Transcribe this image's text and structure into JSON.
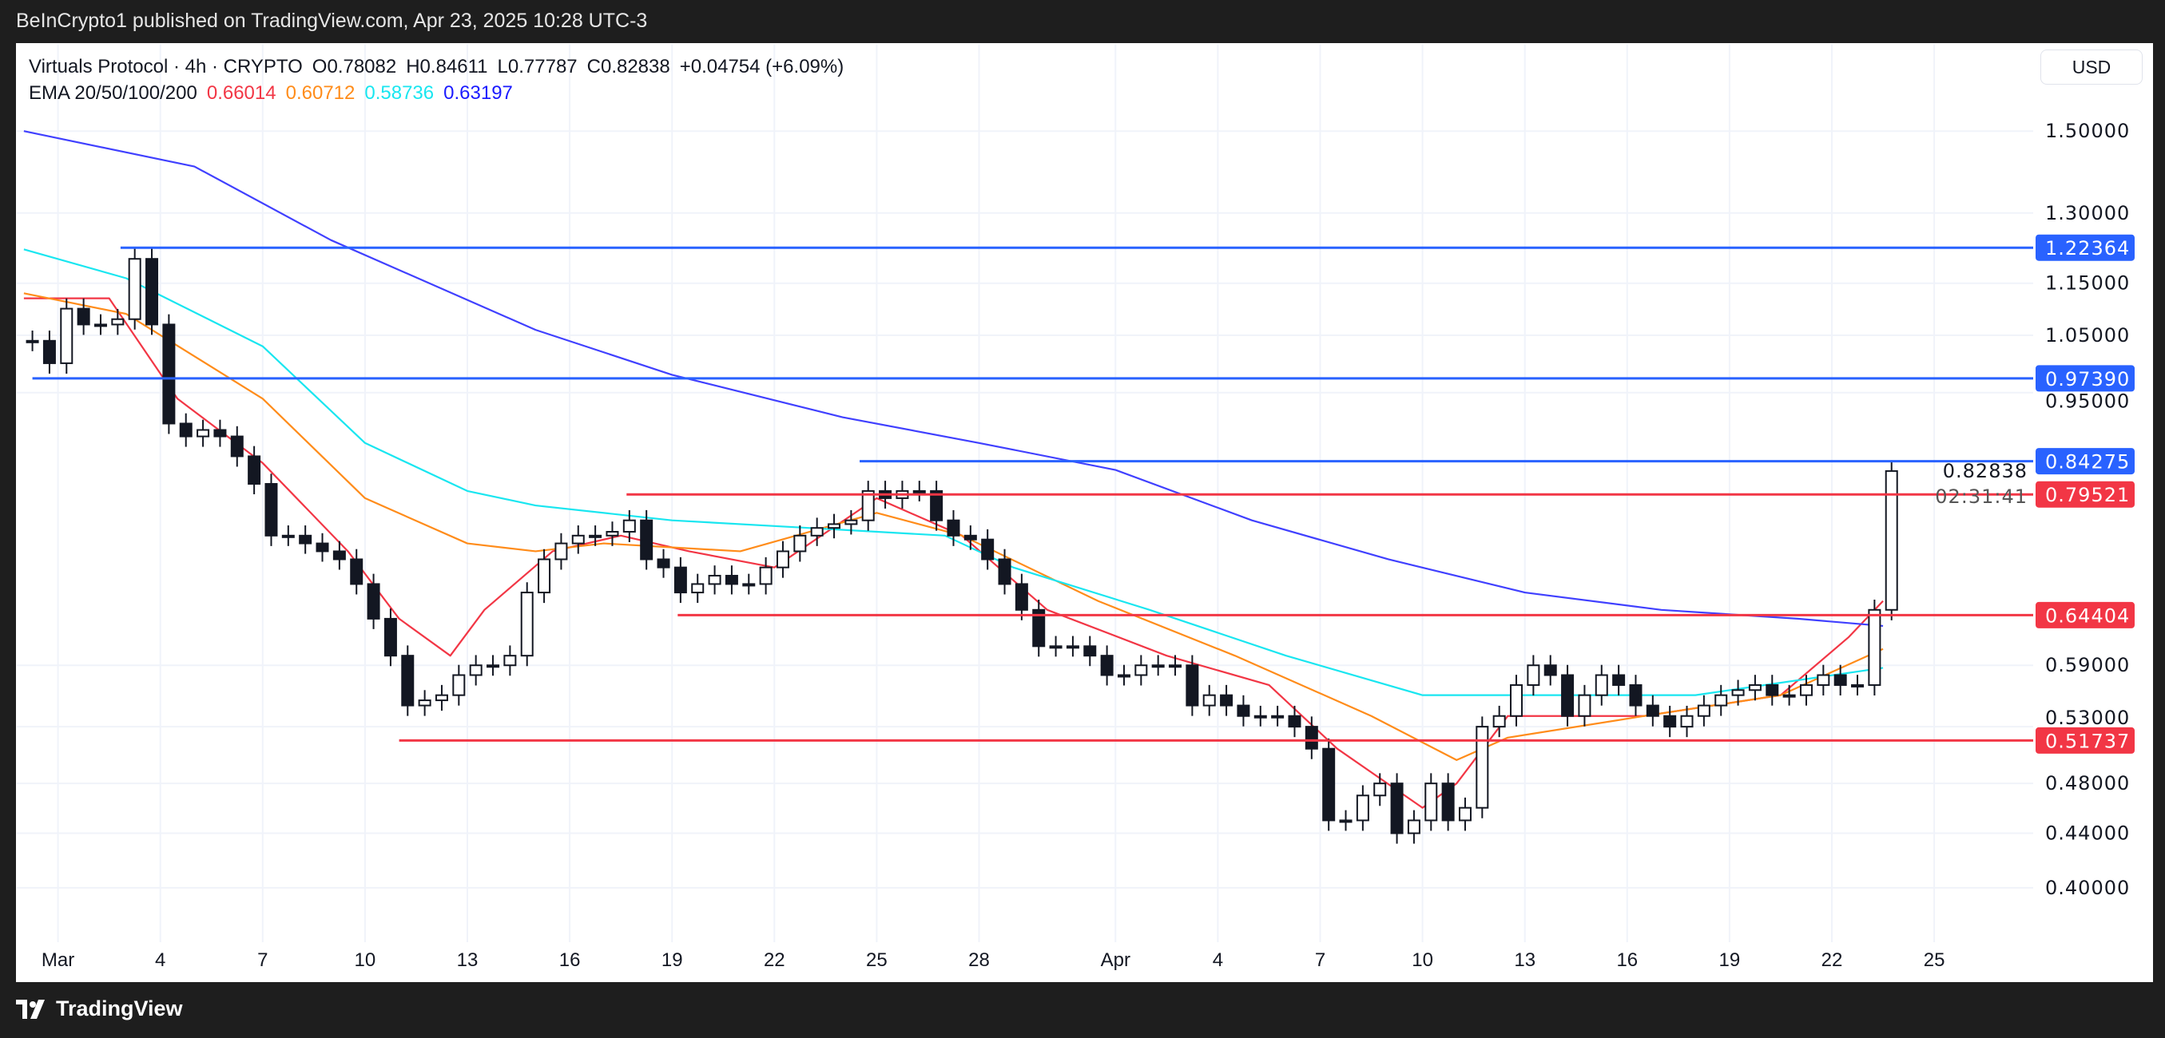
{
  "publish_line": "BeInCrypto1 published on TradingView.com, Apr 23, 2025 10:28 UTC-3",
  "legend": {
    "symbol": "Virtuals Protocol · 4h · CRYPTO",
    "open": "O0.78082",
    "high": "H0.84611",
    "low": "L0.77787",
    "close": "C0.82838",
    "change": "+0.04754 (+6.09%)",
    "ema_label": "EMA 20/50/100/200",
    "ema_values": [
      "0.66014",
      "0.60712",
      "0.58736",
      "0.63197"
    ]
  },
  "currency_button": "USD",
  "footer_brand": "TradingView",
  "colors": {
    "ema20": "#f23645",
    "ema50": "#ff8c1a",
    "ema100": "#19e6f0",
    "ema200": "#4040ff",
    "resistance": "#2962ff",
    "support": "#f23645",
    "grid": "#f0f3fa"
  },
  "chart_data": {
    "type": "candlestick",
    "y_scale": "log",
    "ylim": [
      0.38,
      1.56
    ],
    "grid": true,
    "y_ticks": [
      "1.50000",
      "1.30000",
      "1.15000",
      "1.05000",
      "0.95000",
      "0.59000",
      "0.53000",
      "0.48000",
      "0.44000",
      "0.40000"
    ],
    "x_ticks": [
      {
        "label": "Mar",
        "date": "Mar 1"
      },
      {
        "label": "4",
        "date": "Mar 4"
      },
      {
        "label": "7",
        "date": "Mar 7"
      },
      {
        "label": "10",
        "date": "Mar 10"
      },
      {
        "label": "13",
        "date": "Mar 13"
      },
      {
        "label": "16",
        "date": "Mar 16"
      },
      {
        "label": "19",
        "date": "Mar 19"
      },
      {
        "label": "22",
        "date": "Mar 22"
      },
      {
        "label": "25",
        "date": "Mar 25"
      },
      {
        "label": "28",
        "date": "Mar 28"
      },
      {
        "label": "Apr",
        "date": "Apr 1"
      },
      {
        "label": "4",
        "date": "Apr 4"
      },
      {
        "label": "7",
        "date": "Apr 7"
      },
      {
        "label": "10",
        "date": "Apr 10"
      },
      {
        "label": "13",
        "date": "Apr 13"
      },
      {
        "label": "16",
        "date": "Apr 16"
      },
      {
        "label": "19",
        "date": "Apr 19"
      },
      {
        "label": "22",
        "date": "Apr 22"
      },
      {
        "label": "25",
        "date": "Apr 25"
      }
    ],
    "price_closes_12h": [
      {
        "date": "Feb 28",
        "c": [
          1.04,
          1.0
        ]
      },
      {
        "date": "Mar 1",
        "c": [
          1.1,
          1.07
        ]
      },
      {
        "date": "Mar 2",
        "c": [
          1.07,
          1.08
        ]
      },
      {
        "date": "Mar 3",
        "c": [
          1.2,
          1.07
        ]
      },
      {
        "date": "Mar 4",
        "c": [
          0.9,
          0.88
        ]
      },
      {
        "date": "Mar 5",
        "c": [
          0.89,
          0.88
        ]
      },
      {
        "date": "Mar 6",
        "c": [
          0.85,
          0.81
        ]
      },
      {
        "date": "Mar 7",
        "c": [
          0.74,
          0.74
        ]
      },
      {
        "date": "Mar 8",
        "c": [
          0.73,
          0.72
        ]
      },
      {
        "date": "Mar 9",
        "c": [
          0.71,
          0.68
        ]
      },
      {
        "date": "Mar 10",
        "c": [
          0.64,
          0.6
        ]
      },
      {
        "date": "Mar 11",
        "c": [
          0.55,
          0.555
        ]
      },
      {
        "date": "Mar 12",
        "c": [
          0.56,
          0.58
        ]
      },
      {
        "date": "Mar 13",
        "c": [
          0.59,
          0.59
        ]
      },
      {
        "date": "Mar 14",
        "c": [
          0.6,
          0.67
        ]
      },
      {
        "date": "Mar 15",
        "c": [
          0.71,
          0.73
        ]
      },
      {
        "date": "Mar 16",
        "c": [
          0.74,
          0.74
        ]
      },
      {
        "date": "Mar 17",
        "c": [
          0.745,
          0.76
        ]
      },
      {
        "date": "Mar 18",
        "c": [
          0.71,
          0.7
        ]
      },
      {
        "date": "Mar 19",
        "c": [
          0.67,
          0.68
        ]
      },
      {
        "date": "Mar 20",
        "c": [
          0.69,
          0.68
        ]
      },
      {
        "date": "Mar 21",
        "c": [
          0.68,
          0.7
        ]
      },
      {
        "date": "Mar 22",
        "c": [
          0.72,
          0.74
        ]
      },
      {
        "date": "Mar 23",
        "c": [
          0.75,
          0.755
        ]
      },
      {
        "date": "Mar 24",
        "c": [
          0.76,
          0.8
        ]
      },
      {
        "date": "Mar 25",
        "c": [
          0.79,
          0.8
        ]
      },
      {
        "date": "Mar 26",
        "c": [
          0.8,
          0.76
        ]
      },
      {
        "date": "Mar 27",
        "c": [
          0.74,
          0.735
        ]
      },
      {
        "date": "Mar 28",
        "c": [
          0.71,
          0.68
        ]
      },
      {
        "date": "Mar 29",
        "c": [
          0.65,
          0.61
        ]
      },
      {
        "date": "Mar 30",
        "c": [
          0.61,
          0.61
        ]
      },
      {
        "date": "Mar 31",
        "c": [
          0.6,
          0.58
        ]
      },
      {
        "date": "Apr 1",
        "c": [
          0.58,
          0.59
        ]
      },
      {
        "date": "Apr 2",
        "c": [
          0.59,
          0.59
        ]
      },
      {
        "date": "Apr 3",
        "c": [
          0.55,
          0.56
        ]
      },
      {
        "date": "Apr 4",
        "c": [
          0.55,
          0.54
        ]
      },
      {
        "date": "Apr 5",
        "c": [
          0.54,
          0.54
        ]
      },
      {
        "date": "Apr 6",
        "c": [
          0.53,
          0.51
        ]
      },
      {
        "date": "Apr 7",
        "c": [
          0.45,
          0.45
        ]
      },
      {
        "date": "Apr 8",
        "c": [
          0.47,
          0.48
        ]
      },
      {
        "date": "Apr 9",
        "c": [
          0.44,
          0.45
        ]
      },
      {
        "date": "Apr 10",
        "c": [
          0.48,
          0.45
        ]
      },
      {
        "date": "Apr 11",
        "c": [
          0.46,
          0.53
        ]
      },
      {
        "date": "Apr 12",
        "c": [
          0.54,
          0.57
        ]
      },
      {
        "date": "Apr 13",
        "c": [
          0.59,
          0.58
        ]
      },
      {
        "date": "Apr 14",
        "c": [
          0.54,
          0.56
        ]
      },
      {
        "date": "Apr 15",
        "c": [
          0.58,
          0.57
        ]
      },
      {
        "date": "Apr 16",
        "c": [
          0.55,
          0.54
        ]
      },
      {
        "date": "Apr 17",
        "c": [
          0.53,
          0.54
        ]
      },
      {
        "date": "Apr 18",
        "c": [
          0.55,
          0.56
        ]
      },
      {
        "date": "Apr 19",
        "c": [
          0.565,
          0.57
        ]
      },
      {
        "date": "Apr 20",
        "c": [
          0.56,
          0.56
        ]
      },
      {
        "date": "Apr 21",
        "c": [
          0.57,
          0.58
        ]
      },
      {
        "date": "Apr 22",
        "c": [
          0.57,
          0.57
        ]
      },
      {
        "date": "Apr 23",
        "c": [
          0.65,
          0.82838
        ]
      }
    ],
    "ema": [
      {
        "name": "EMA 20",
        "color_key": "ema20",
        "points": [
          [
            "Feb 28",
            1.12
          ],
          [
            "Mar 2 12:00",
            1.12
          ],
          [
            "Mar 4 12:00",
            0.94
          ],
          [
            "Mar 7",
            0.84
          ],
          [
            "Mar 9 12:00",
            0.72
          ],
          [
            "Mar 11",
            0.64
          ],
          [
            "Mar 12 12:00",
            0.6
          ],
          [
            "Mar 13 12:00",
            0.65
          ],
          [
            "Mar 15 12:00",
            0.72
          ],
          [
            "Mar 17 12:00",
            0.74
          ],
          [
            "Mar 19 12:00",
            0.72
          ],
          [
            "Mar 22",
            0.7
          ],
          [
            "Mar 25",
            0.79
          ],
          [
            "Mar 27 12:00",
            0.74
          ],
          [
            "Mar 30",
            0.65
          ],
          [
            "Apr 2 12:00",
            0.6
          ],
          [
            "Apr 5 12:00",
            0.57
          ],
          [
            "Apr 7 12:00",
            0.51
          ],
          [
            "Apr 10",
            0.46
          ],
          [
            "Apr 11",
            0.48
          ],
          [
            "Apr 12 12:00",
            0.54
          ],
          [
            "Apr 16 12:00",
            0.54
          ],
          [
            "Apr 20 12:00",
            0.56
          ],
          [
            "Apr 22 12:00",
            0.62
          ],
          [
            "Apr 23 12:00",
            0.66014
          ]
        ]
      },
      {
        "name": "EMA 50",
        "color_key": "ema50",
        "points": [
          [
            "Feb 28",
            1.13
          ],
          [
            "Mar 3",
            1.09
          ],
          [
            "Mar 7",
            0.94
          ],
          [
            "Mar 10",
            0.79
          ],
          [
            "Mar 13",
            0.73
          ],
          [
            "Mar 15",
            0.72
          ],
          [
            "Mar 17",
            0.73
          ],
          [
            "Mar 21",
            0.72
          ],
          [
            "Mar 25",
            0.77
          ],
          [
            "Mar 27 12:00",
            0.74
          ],
          [
            "Mar 31 12:00",
            0.66
          ],
          [
            "Apr 4 12:00",
            0.6
          ],
          [
            "Apr 8 12:00",
            0.54
          ],
          [
            "Apr 11",
            0.5
          ],
          [
            "Apr 12 12:00",
            0.52
          ],
          [
            "Apr 16 12:00",
            0.54
          ],
          [
            "Apr 20 12:00",
            0.56
          ],
          [
            "Apr 23 12:00",
            0.60712
          ]
        ]
      },
      {
        "name": "EMA 100",
        "color_key": "ema100",
        "points": [
          [
            "Feb 28",
            1.22
          ],
          [
            "Mar 3",
            1.16
          ],
          [
            "Mar 7",
            1.03
          ],
          [
            "Mar 10",
            0.87
          ],
          [
            "Mar 13",
            0.8
          ],
          [
            "Mar 15",
            0.78
          ],
          [
            "Mar 19",
            0.76
          ],
          [
            "Mar 23",
            0.75
          ],
          [
            "Mar 27",
            0.74
          ],
          [
            "Mar 29",
            0.7
          ],
          [
            "Apr 2",
            0.65
          ],
          [
            "Apr 6",
            0.6
          ],
          [
            "Apr 10",
            0.56
          ],
          [
            "Apr 14",
            0.56
          ],
          [
            "Apr 18",
            0.56
          ],
          [
            "Apr 23 12:00",
            0.58736
          ]
        ]
      },
      {
        "name": "EMA 200",
        "color_key": "ema200",
        "points": [
          [
            "Feb 28",
            1.5
          ],
          [
            "Mar 5",
            1.41
          ],
          [
            "Mar 9",
            1.24
          ],
          [
            "Mar 15",
            1.06
          ],
          [
            "Mar 19",
            0.98
          ],
          [
            "Mar 24",
            0.91
          ],
          [
            "Mar 28",
            0.87
          ],
          [
            "Apr 1",
            0.83
          ],
          [
            "Apr 5",
            0.76
          ],
          [
            "Apr 9",
            0.71
          ],
          [
            "Apr 13",
            0.67
          ],
          [
            "Apr 17",
            0.65
          ],
          [
            "Apr 21",
            0.64
          ],
          [
            "Apr 23 12:00",
            0.63197
          ]
        ]
      }
    ],
    "levels": [
      {
        "value": 1.22364,
        "label": "1.22364",
        "kind": "resistance",
        "from": "Mar 2 20:00"
      },
      {
        "value": 0.9739,
        "label": "0.97390",
        "kind": "resistance",
        "from": "Feb 28 06:00"
      },
      {
        "value": 0.84275,
        "label": "0.84275",
        "kind": "resistance",
        "from": "Mar 24 12:00"
      },
      {
        "value": 0.79521,
        "label": "0.79521",
        "kind": "support",
        "from": "Mar 17 16:00"
      },
      {
        "value": 0.64404,
        "label": "0.64404",
        "kind": "support",
        "from": "Mar 19 04:00"
      },
      {
        "value": 0.51737,
        "label": "0.51737",
        "kind": "support",
        "from": "Mar 11 00:00"
      }
    ],
    "last_price": {
      "value": 0.82838,
      "label": "0.82838",
      "countdown": "02:31:41"
    }
  }
}
